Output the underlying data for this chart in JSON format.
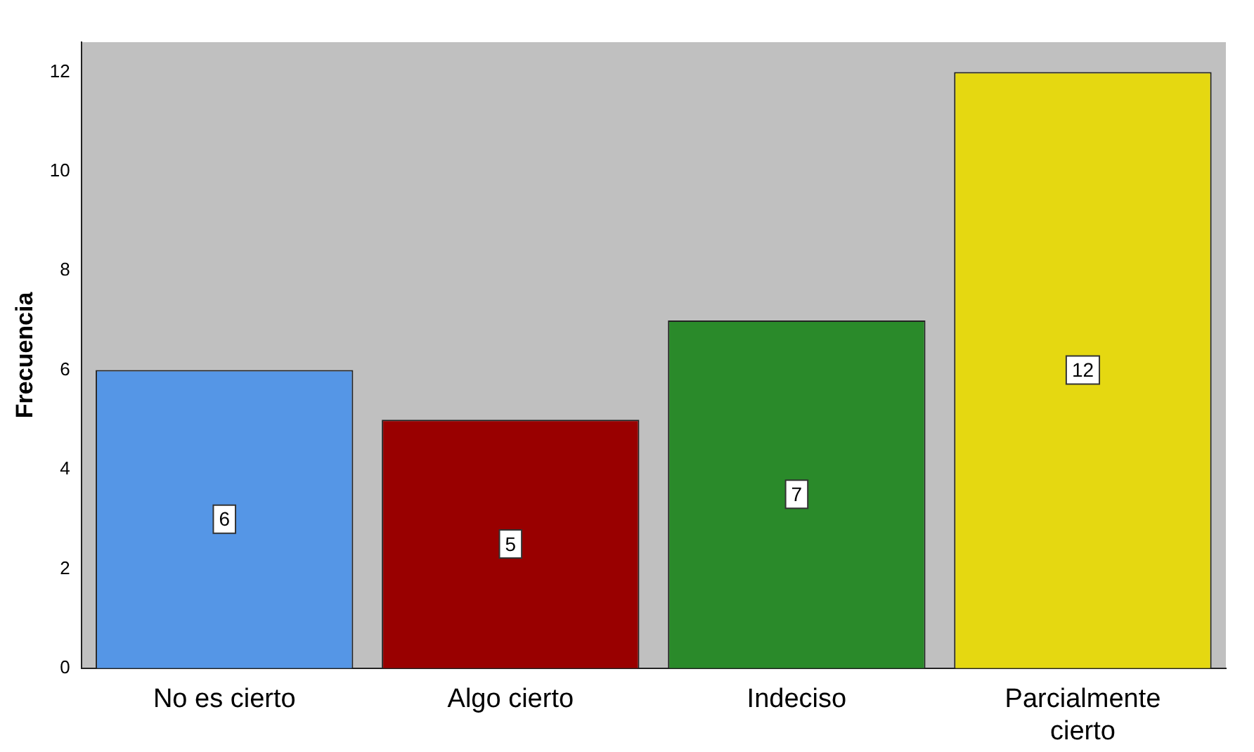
{
  "chart_data": {
    "type": "bar",
    "ylabel": "Frecuencia",
    "categories": [
      "No es cierto",
      "Algo cierto",
      "Indeciso",
      "Parcialmente cierto"
    ],
    "values": [
      6,
      5,
      7,
      12
    ],
    "colors": [
      "#5596e6",
      "#990000",
      "#2a8a2a",
      "#e5d811"
    ],
    "ylim": [
      0,
      12.6
    ],
    "yticks": [
      0,
      2,
      4,
      6,
      8,
      10,
      12
    ],
    "grid": false,
    "legend": false,
    "data_labels": true
  }
}
